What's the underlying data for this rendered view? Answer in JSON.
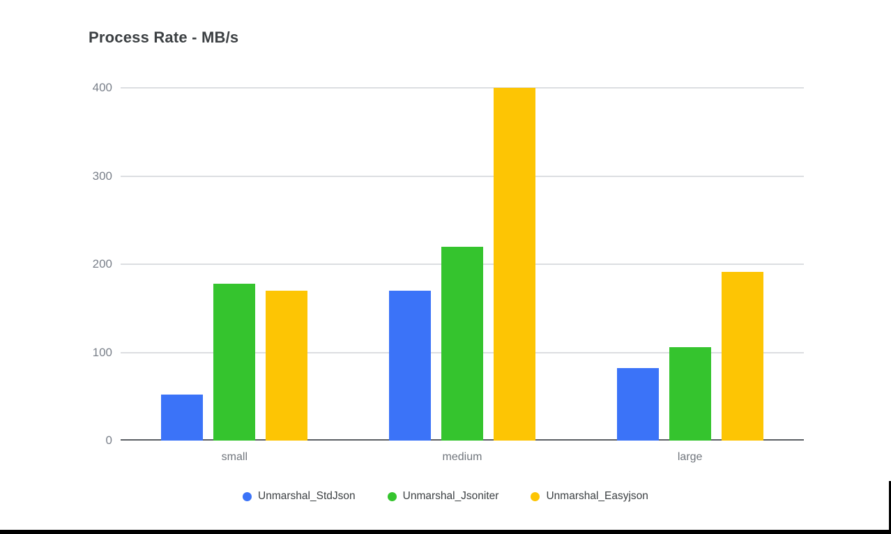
{
  "title": "Process Rate - MB/s",
  "colors": {
    "title_text": "#3c4043",
    "tick_text": "#7a808a",
    "category_text": "#70757c",
    "legend_text": "#3c4043",
    "gridline": "#dcdee1",
    "baseline": "#5a5e63",
    "background": "#ffffff",
    "window_edge": "#000000"
  },
  "chart_data": {
    "type": "bar",
    "title": "Process Rate - MB/s",
    "xlabel": "",
    "ylabel": "",
    "categories": [
      "small",
      "medium",
      "large"
    ],
    "series": [
      {
        "name": "Unmarshal_StdJson",
        "color": "#3b73f8",
        "values": [
          52,
          170,
          82
        ]
      },
      {
        "name": "Unmarshal_Jsoniter",
        "color": "#35c42e",
        "values": [
          178,
          220,
          106
        ]
      },
      {
        "name": "Unmarshal_Easyjson",
        "color": "#fdc504",
        "values": [
          170,
          400,
          191
        ]
      }
    ],
    "ylim": [
      0,
      400
    ],
    "yticks": [
      0,
      100,
      200,
      300,
      400
    ],
    "grid": true,
    "legend_position": "bottom"
  }
}
